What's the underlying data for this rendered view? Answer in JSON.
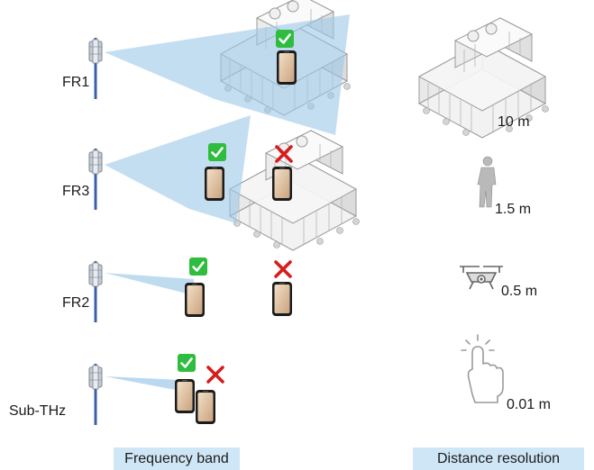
{
  "bands": [
    {
      "label": "FR1",
      "resolution": "10 m",
      "check": 1,
      "cross": 0
    },
    {
      "label": "FR3",
      "resolution": "1.5 m",
      "check": 1,
      "cross": 1
    },
    {
      "label": "FR2",
      "resolution": "0.5 m",
      "check": 1,
      "cross": 1
    },
    {
      "label": "Sub-THz",
      "resolution": "0.01 m",
      "check": 1,
      "cross": 1
    }
  ],
  "resolution_objects": [
    "building-icon",
    "person-icon",
    "drone-icon",
    "finger-tap-icon"
  ],
  "footer": {
    "left": "Frequency band",
    "right": "Distance resolution"
  },
  "colors": {
    "beam": "#9cc8e8",
    "antenna_pole": "#3c5fa8",
    "check": "#2ebd3f",
    "cross": "#d81b1b",
    "footer_bg": "#cfe6f6"
  }
}
